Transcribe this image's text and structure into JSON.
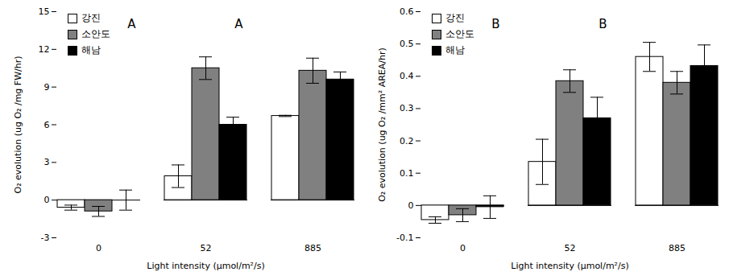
{
  "chart_data": [
    {
      "type": "bar",
      "annotation": "A",
      "ylabel": "O₂ evolution (ug O₂ /mg FW/hr)",
      "xlabel": "Light intensity (μmol/m²/s)",
      "categories": [
        0,
        52,
        885
      ],
      "ylim": [
        -3,
        15
      ],
      "yticks": [
        -3,
        0,
        3,
        6,
        9,
        12,
        15
      ],
      "legend": "top-left",
      "series": [
        {
          "name": "강진",
          "color": "#ffffff",
          "values": [
            -0.6,
            1.9,
            6.7
          ],
          "errors": [
            0.2,
            0.9,
            0.05
          ]
        },
        {
          "name": "소안도",
          "color": "#808080",
          "values": [
            -0.9,
            10.5,
            10.3
          ],
          "errors": [
            0.4,
            0.9,
            1.0
          ]
        },
        {
          "name": "해남",
          "color": "#000000",
          "values": [
            0.0,
            6.0,
            9.6
          ],
          "errors": [
            0.8,
            0.6,
            0.6
          ]
        }
      ]
    },
    {
      "type": "bar",
      "annotation": "B",
      "ylabel": "O₂ evolution (ug O₂ /mm² AREA/hr)",
      "xlabel": "Light intensity (μmol/m²/s)",
      "categories": [
        0,
        52,
        885
      ],
      "ylim": [
        -0.1,
        0.6
      ],
      "yticks": [
        -0.1,
        0,
        0.1,
        0.2,
        0.3,
        0.4,
        0.5,
        0.6
      ],
      "legend": "top-left",
      "series": [
        {
          "name": "강진",
          "color": "#ffffff",
          "values": [
            -0.045,
            0.135,
            0.46
          ],
          "errors": [
            0.01,
            0.07,
            0.045
          ]
        },
        {
          "name": "소안도",
          "color": "#808080",
          "values": [
            -0.03,
            0.385,
            0.38
          ],
          "errors": [
            0.02,
            0.035,
            0.035
          ]
        },
        {
          "name": "해남",
          "color": "#000000",
          "values": [
            -0.005,
            0.27,
            0.432
          ],
          "errors": [
            0.035,
            0.065,
            0.065
          ]
        }
      ]
    }
  ]
}
